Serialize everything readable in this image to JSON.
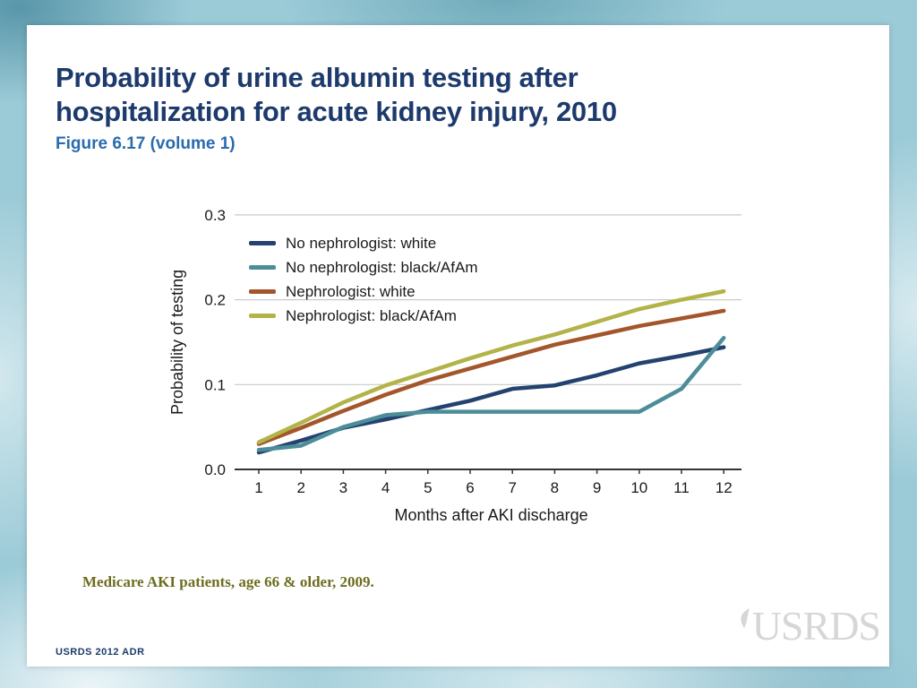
{
  "slide": {
    "title_line1": "Probability of urine albumin testing after",
    "title_line2": "hospitalization for acute kidney injury, 2010",
    "subtitle": "Figure 6.17 (volume 1)",
    "note": "Medicare AKI patients, age 66 & older, 2009.",
    "footer": "USRDS 2012 ADR",
    "watermark": "USRDS"
  },
  "colors": {
    "title_color": "#1d3a6d",
    "subtitle_color": "#2a6bad",
    "note_color": "#6d6d1f",
    "watermark_color": "#d6d6d6",
    "background_teal": "#9ccbd8"
  },
  "chart_data": {
    "type": "line",
    "x": [
      1,
      2,
      3,
      4,
      5,
      6,
      7,
      8,
      9,
      10,
      11,
      12
    ],
    "xticks": [
      1,
      2,
      3,
      4,
      5,
      6,
      7,
      8,
      9,
      10,
      11,
      12
    ],
    "yticks": [
      0.0,
      0.1,
      0.2,
      0.3
    ],
    "ylim": [
      0,
      0.3
    ],
    "xlabel": "Months after AKI discharge",
    "ylabel": "Probability of testing",
    "grid": "horizontal-light-gray",
    "legend_position": "top-left-inside",
    "series": [
      {
        "name": "No nephrologist: white",
        "color": "#24426f",
        "values": [
          0.02,
          0.034,
          0.049,
          0.059,
          0.07,
          0.081,
          0.095,
          0.099,
          0.111,
          0.125,
          0.134,
          0.144
        ]
      },
      {
        "name": "No nephrologist: black/AfAm",
        "color": "#4d8d9a",
        "values": [
          0.023,
          0.028,
          0.05,
          0.064,
          0.068,
          0.068,
          0.068,
          0.068,
          0.068,
          0.068,
          0.095,
          0.155
        ]
      },
      {
        "name": "Nephrologist: white",
        "color": "#a3562b",
        "values": [
          0.03,
          0.049,
          0.069,
          0.088,
          0.105,
          0.119,
          0.133,
          0.147,
          0.158,
          0.169,
          0.178,
          0.187
        ]
      },
      {
        "name": "Nephrologist: black/AfAm",
        "color": "#b2b348",
        "values": [
          0.032,
          0.055,
          0.079,
          0.099,
          0.115,
          0.131,
          0.146,
          0.159,
          0.174,
          0.189,
          0.2,
          0.21
        ]
      }
    ]
  }
}
